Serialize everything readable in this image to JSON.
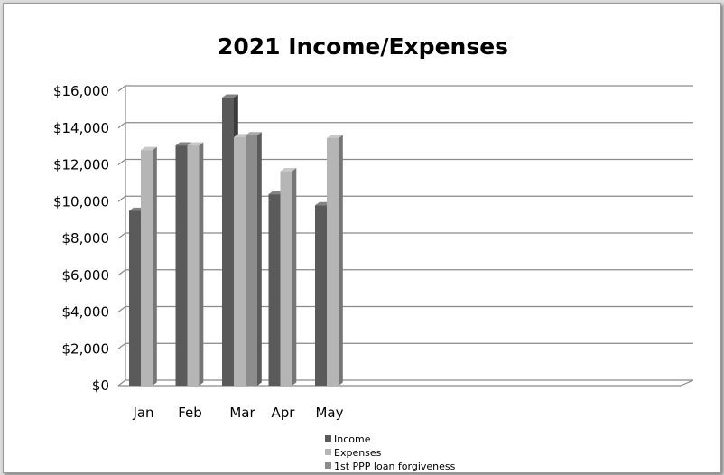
{
  "chart_data": {
    "type": "bar",
    "title": "2021 Income/Expenses",
    "categories": [
      "Jan",
      "Feb",
      "Mar",
      "Apr",
      "May"
    ],
    "series": [
      {
        "name": "Income",
        "values": [
          9500,
          13050,
          15650,
          10400,
          9800
        ],
        "color": "#5a5a5a"
      },
      {
        "name": "Expenses",
        "values": [
          12800,
          13050,
          13500,
          11650,
          13450
        ],
        "color": "#b5b5b5"
      },
      {
        "name": "1st PPP loan forgiveness",
        "values": [
          null,
          null,
          13600,
          null,
          null
        ],
        "color": "#8c8c8c"
      }
    ],
    "y_ticks": [
      "$0",
      "$2,000",
      "$4,000",
      "$6,000",
      "$8,000",
      "$10,000",
      "$12,000",
      "$14,000",
      "$16,000"
    ],
    "ylim": [
      0,
      16000
    ],
    "grid": true,
    "legend_position": "bottom",
    "style": "3d-clustered-column"
  }
}
